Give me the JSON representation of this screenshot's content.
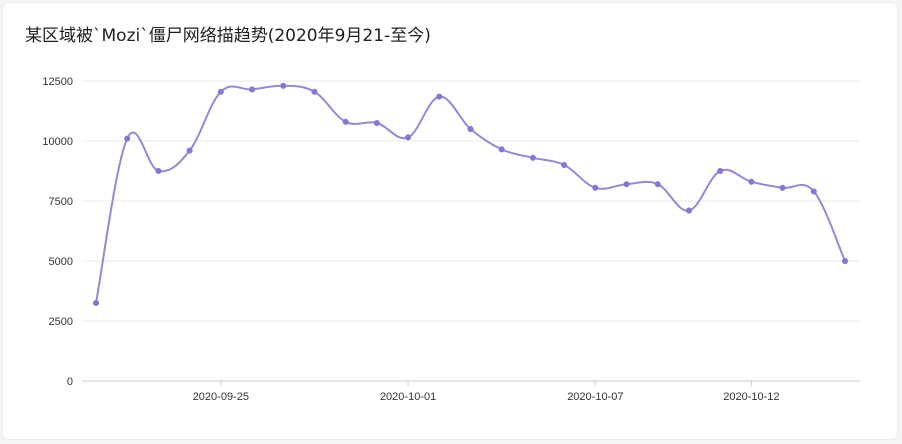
{
  "title": "某区域被`Mozi`僵尸网络描趋势(2020年9月21-至今)",
  "colors": {
    "line": "#9a86d8",
    "point": "#8a76d2",
    "grid": "#ebebeb",
    "axis": "#cccccc"
  },
  "chart_data": {
    "type": "line",
    "title": "某区域被`Mozi`僵尸网络描趋势(2020年9月21-至今)",
    "xlabel": "",
    "ylabel": "",
    "ylim": [
      0,
      12500
    ],
    "yticks": [
      0,
      2500,
      5000,
      7500,
      10000,
      12500
    ],
    "grid": true,
    "x_tick_labels": [
      "2020-09-25",
      "2020-10-01",
      "2020-10-07",
      "2020-10-12"
    ],
    "x": [
      "2020-09-21",
      "2020-09-22",
      "2020-09-23",
      "2020-09-24",
      "2020-09-25",
      "2020-09-26",
      "2020-09-27",
      "2020-09-28",
      "2020-09-29",
      "2020-09-30",
      "2020-10-01",
      "2020-10-02",
      "2020-10-03",
      "2020-10-04",
      "2020-10-05",
      "2020-10-06",
      "2020-10-07",
      "2020-10-08",
      "2020-10-09",
      "2020-10-10",
      "2020-10-11",
      "2020-10-12",
      "2020-10-13",
      "2020-10-14",
      "2020-10-15"
    ],
    "series": [
      {
        "name": "",
        "values": [
          3250,
          10100,
          8750,
          9600,
          12050,
          12150,
          12300,
          12050,
          10800,
          10750,
          10150,
          11850,
          10500,
          9650,
          9300,
          9000,
          8050,
          8200,
          8200,
          7100,
          8750,
          8300,
          8050,
          7900,
          5000
        ]
      }
    ]
  }
}
